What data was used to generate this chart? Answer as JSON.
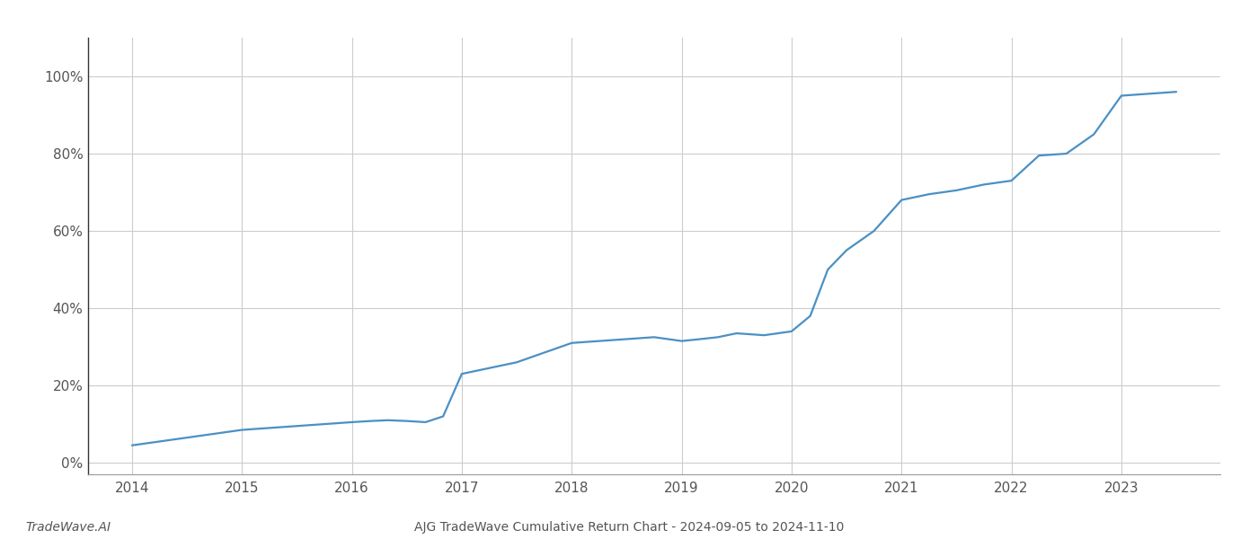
{
  "title": "AJG TradeWave Cumulative Return Chart - 2024-09-05 to 2024-11-10",
  "watermark": "TradeWave.AI",
  "line_color": "#4a90c4",
  "background_color": "#ffffff",
  "grid_color": "#cccccc",
  "x_values": [
    2014.0,
    2014.25,
    2014.5,
    2014.75,
    2015.0,
    2015.25,
    2015.5,
    2015.75,
    2016.0,
    2016.17,
    2016.33,
    2016.5,
    2016.67,
    2016.83,
    2017.0,
    2017.25,
    2017.5,
    2017.75,
    2018.0,
    2018.25,
    2018.5,
    2018.75,
    2019.0,
    2019.17,
    2019.33,
    2019.5,
    2019.75,
    2020.0,
    2020.17,
    2020.33,
    2020.5,
    2020.75,
    2021.0,
    2021.25,
    2021.5,
    2021.75,
    2022.0,
    2022.25,
    2022.5,
    2022.75,
    2023.0,
    2023.25,
    2023.5
  ],
  "y_values": [
    4.5,
    5.5,
    6.5,
    7.5,
    8.5,
    9.0,
    9.5,
    10.0,
    10.5,
    10.8,
    11.0,
    10.8,
    10.5,
    12.0,
    23.0,
    24.5,
    26.0,
    28.5,
    31.0,
    31.5,
    32.0,
    32.5,
    31.5,
    32.0,
    32.5,
    33.5,
    33.0,
    34.0,
    38.0,
    50.0,
    55.0,
    60.0,
    68.0,
    69.5,
    70.5,
    72.0,
    73.0,
    79.5,
    80.0,
    85.0,
    95.0,
    95.5,
    96.0
  ],
  "xlim": [
    2013.6,
    2023.9
  ],
  "ylim": [
    -3,
    110
  ],
  "yticks": [
    0,
    20,
    40,
    60,
    80,
    100
  ],
  "ytick_labels": [
    "0%",
    "20%",
    "40%",
    "60%",
    "80%",
    "100%"
  ],
  "xticks": [
    2014,
    2015,
    2016,
    2017,
    2018,
    2019,
    2020,
    2021,
    2022,
    2023
  ],
  "line_width": 1.6,
  "figsize": [
    14,
    6
  ],
  "dpi": 100,
  "title_fontsize": 10,
  "watermark_fontsize": 10,
  "tick_fontsize": 11,
  "spine_color": "#999999",
  "left_spine_color": "#333333"
}
